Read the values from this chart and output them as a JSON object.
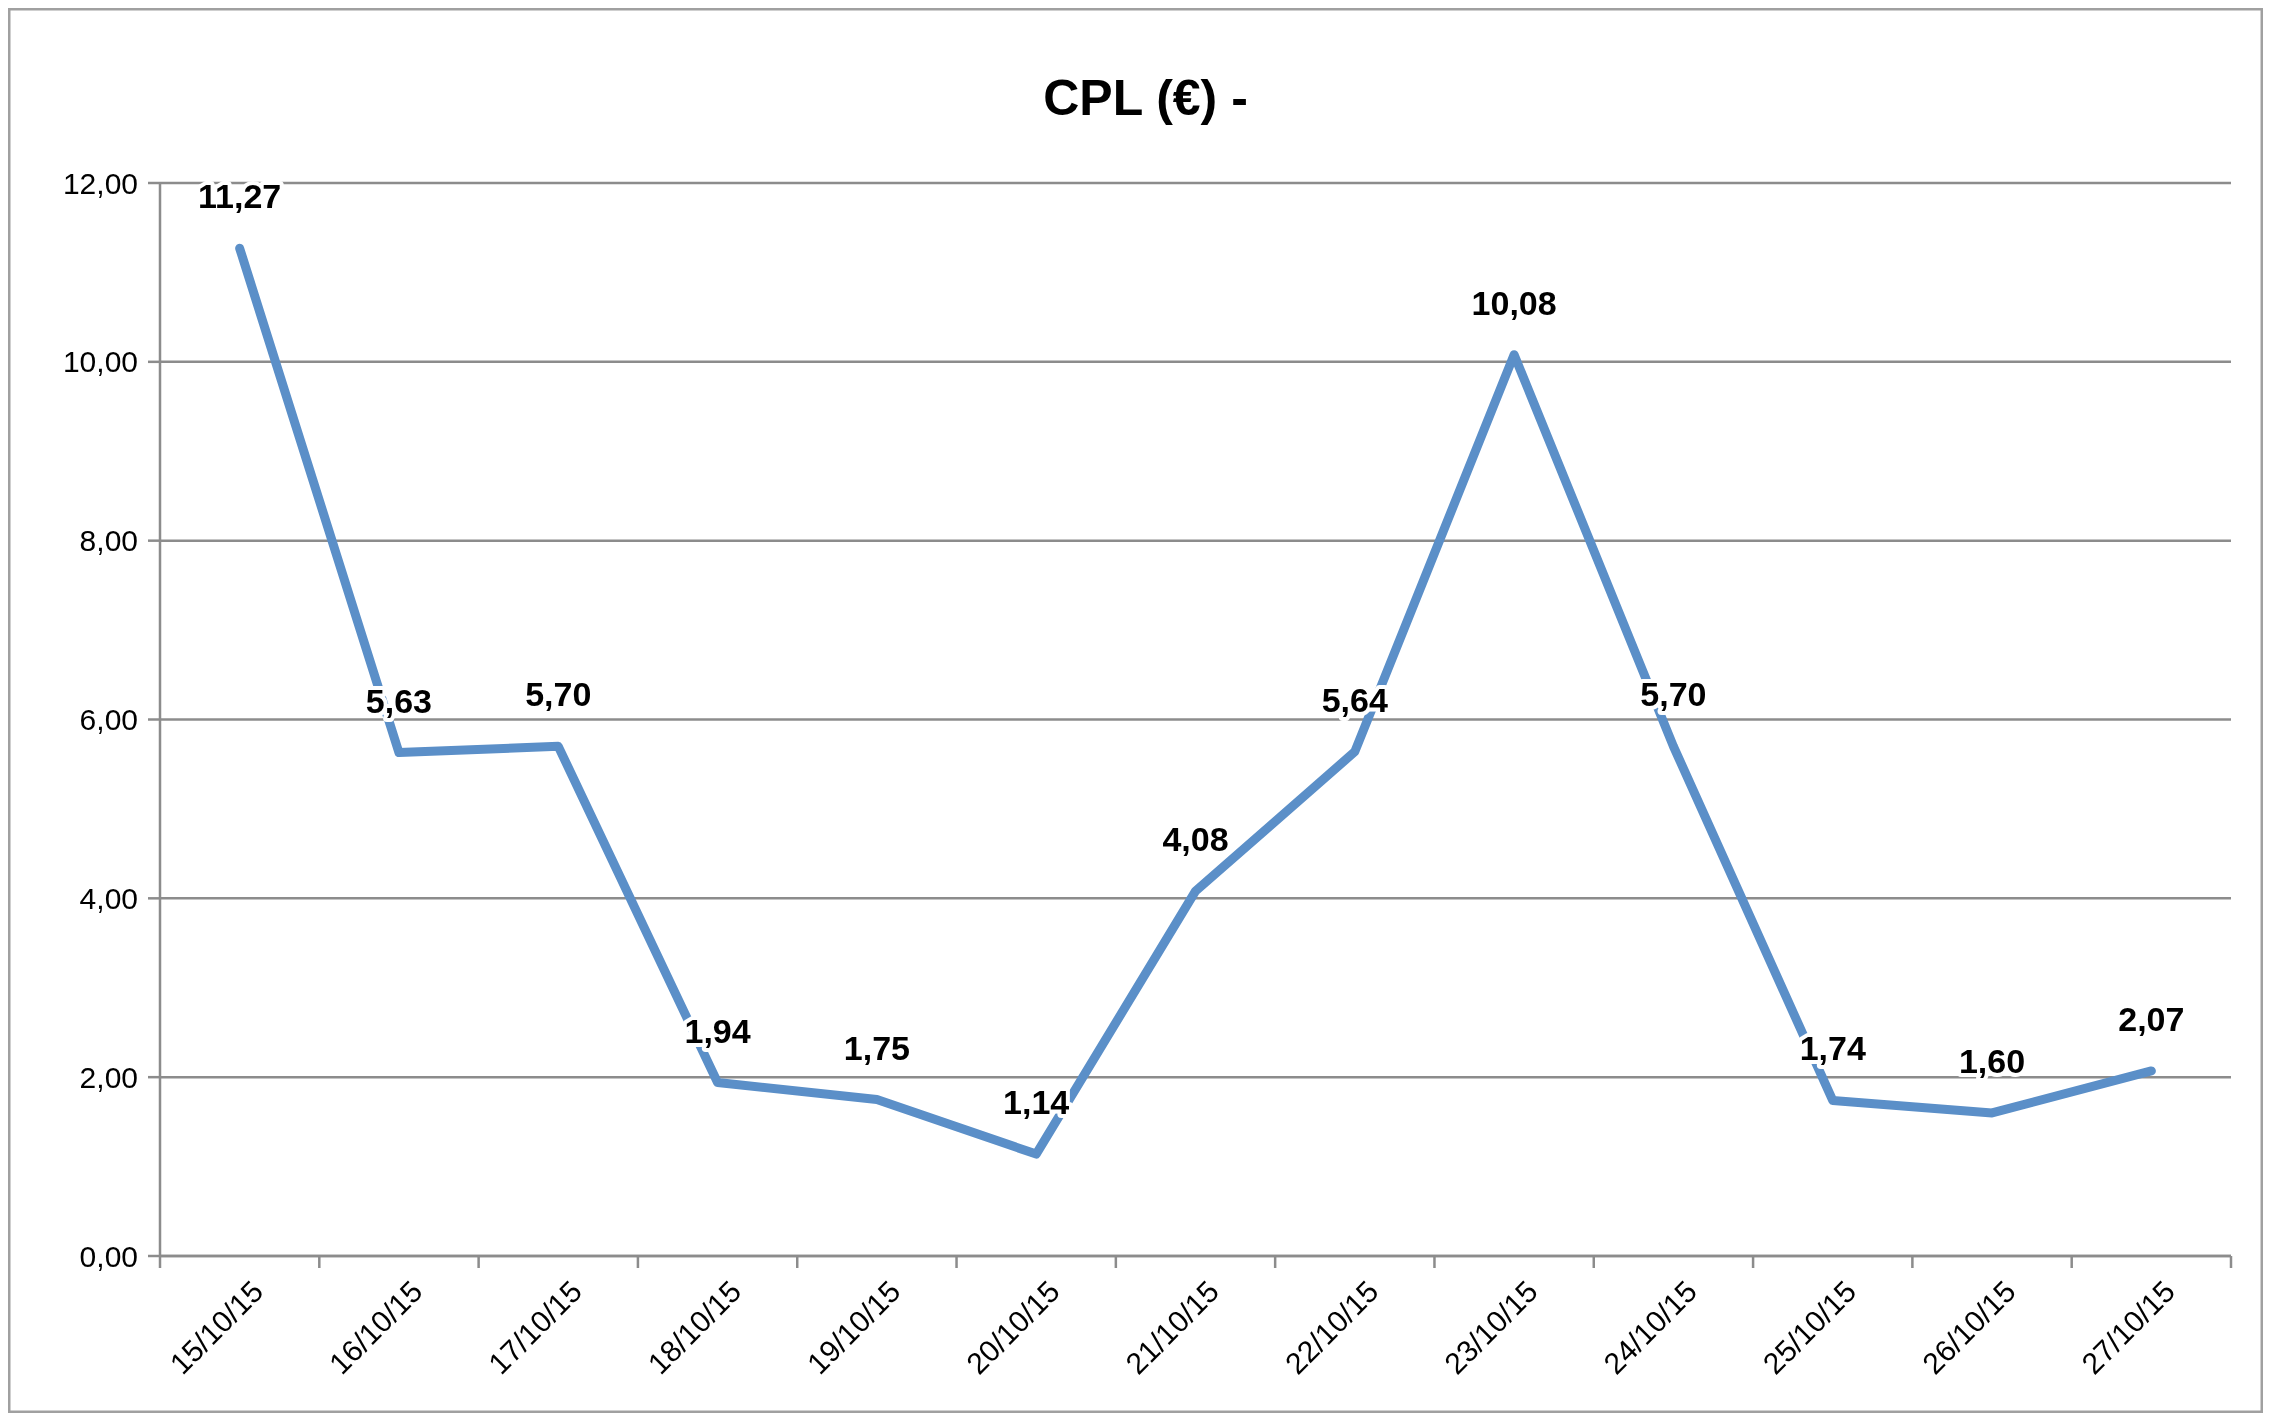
{
  "chart_data": {
    "type": "line",
    "title": "CPL (€) -",
    "categories": [
      "15/10/15",
      "16/10/15",
      "17/10/15",
      "18/10/15",
      "19/10/15",
      "20/10/15",
      "21/10/15",
      "22/10/15",
      "23/10/15",
      "24/10/15",
      "25/10/15",
      "26/10/15",
      "27/10/15"
    ],
    "series": [
      {
        "color": "#5b8fc8",
        "values": [
          11.27,
          5.63,
          5.7,
          1.94,
          1.75,
          1.14,
          4.08,
          5.64,
          10.08,
          5.7,
          1.74,
          1.6,
          2.07
        ],
        "value_labels": [
          "11,27",
          "5,63",
          "5,70",
          "1,94",
          "1,75",
          "1,14",
          "4,08",
          "5,64",
          "10,08",
          "5,70",
          "1,74",
          "1,60",
          "2,07"
        ]
      }
    ],
    "ylim": [
      0,
      12
    ],
    "yticks": [
      {
        "value": 0,
        "label": "0,00"
      },
      {
        "value": 2,
        "label": "2,00"
      },
      {
        "value": 4,
        "label": "4,00"
      },
      {
        "value": 6,
        "label": "6,00"
      },
      {
        "value": 8,
        "label": "8,00"
      },
      {
        "value": 10,
        "label": "10,00"
      },
      {
        "value": 12,
        "label": "12,00"
      }
    ],
    "grid": "y",
    "marker": "none",
    "line_style": "solid"
  }
}
